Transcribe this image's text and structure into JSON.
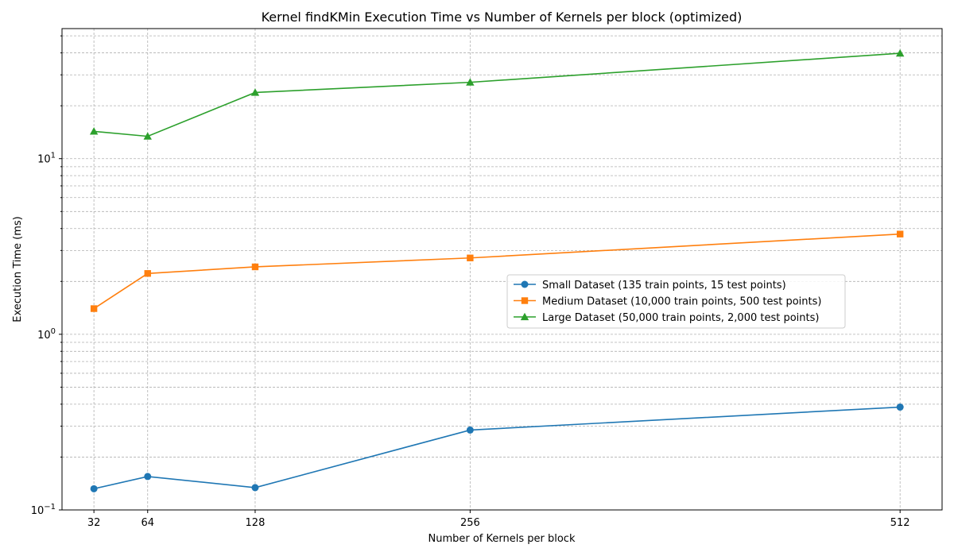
{
  "chart_data": {
    "type": "line",
    "title": "Kernel findKMin Execution Time vs Number of Kernels per block (optimized)",
    "xlabel": "Number of Kernels per block",
    "ylabel": "Execution Time (ms)",
    "x": [
      32,
      64,
      128,
      256,
      512
    ],
    "x_tick_labels": [
      "32",
      "64",
      "128",
      "256",
      "512"
    ],
    "xlim": [
      13,
      537
    ],
    "yscale": "log",
    "ylim": [
      0.1,
      55
    ],
    "y_ticks": [
      {
        "value": 0.1,
        "base": "10",
        "exp": "−1"
      },
      {
        "value": 1,
        "base": "10",
        "exp": "0"
      },
      {
        "value": 10,
        "base": "10",
        "exp": "1"
      }
    ],
    "grid": true,
    "legend_position": "center-right",
    "series": [
      {
        "name": "Small Dataset (135 train points, 15 test points)",
        "color": "#1f77b4",
        "marker": "circle",
        "values": [
          0.132,
          0.155,
          0.134,
          0.285,
          0.385
        ]
      },
      {
        "name": "Medium Dataset (10,000 train points, 500 test points)",
        "color": "#ff7f0e",
        "marker": "square",
        "values": [
          1.4,
          2.22,
          2.42,
          2.72,
          3.72
        ]
      },
      {
        "name": "Large Dataset (50,000 train points, 2,000 test points)",
        "color": "#2ca02c",
        "marker": "triangle",
        "values": [
          14.3,
          13.4,
          23.8,
          27.2,
          39.8
        ]
      }
    ]
  }
}
